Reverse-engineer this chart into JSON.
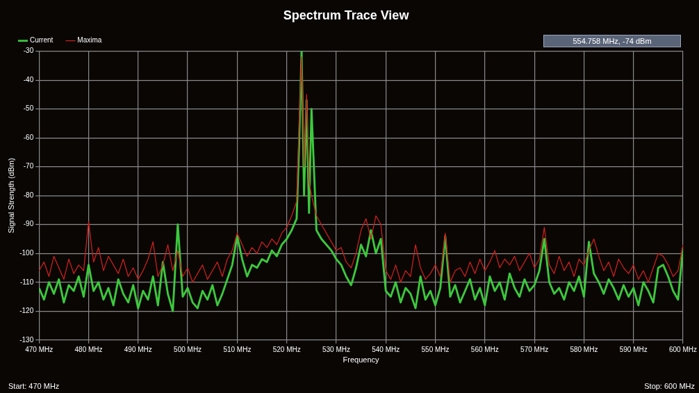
{
  "chart_data": {
    "type": "line",
    "title": "Spectrum Trace View",
    "xlabel": "Frequency",
    "ylabel": "Signal Strength (dBm)",
    "annotations": [
      "554.758 MHz,  -74 dBm",
      "Start: 470 MHz",
      "Stop: 600 MHz"
    ],
    "x": [
      470,
      471,
      472,
      473,
      474,
      475,
      476,
      477,
      478,
      479,
      480,
      481,
      482,
      483,
      484,
      485,
      486,
      487,
      488,
      489,
      490,
      491,
      492,
      493,
      494,
      495,
      496,
      497,
      498,
      499,
      500,
      501,
      502,
      503,
      504,
      505,
      506,
      507,
      508,
      509,
      510,
      511,
      512,
      513,
      514,
      515,
      516,
      517,
      518,
      519,
      520,
      521,
      522,
      522.5,
      523,
      523.5,
      524,
      524.5,
      525,
      526,
      527,
      528,
      529,
      530,
      531,
      532,
      533,
      534,
      535,
      536,
      537,
      538,
      539,
      540,
      541,
      542,
      543,
      544,
      545,
      546,
      547,
      548,
      549,
      550,
      551,
      552,
      553,
      554,
      555,
      556,
      557,
      558,
      559,
      560,
      561,
      562,
      563,
      564,
      565,
      566,
      567,
      568,
      569,
      570,
      571,
      572,
      573,
      574,
      575,
      576,
      577,
      578,
      579,
      580,
      581,
      582,
      583,
      584,
      585,
      586,
      587,
      588,
      589,
      590,
      591,
      592,
      593,
      594,
      595,
      596,
      597,
      598,
      599,
      600
    ],
    "series": [
      {
        "name": "Current",
        "color": "#3cc83c",
        "values": [
          -112,
          -116,
          -110,
          -114,
          -109,
          -117,
          -111,
          -113,
          -108,
          -115,
          -104,
          -113,
          -110,
          -116,
          -112,
          -118,
          -109,
          -114,
          -117,
          -111,
          -119,
          -113,
          -116,
          -108,
          -118,
          -103,
          -114,
          -120,
          -90,
          -115,
          -112,
          -117,
          -119,
          -113,
          -116,
          -111,
          -118,
          -114,
          -109,
          -104,
          -94,
          -102,
          -108,
          -104,
          -105,
          -102,
          -103,
          -99,
          -101,
          -97,
          -95,
          -92,
          -88,
          -62,
          -30,
          -80,
          -47,
          -86,
          -50,
          -92,
          -95,
          -97,
          -99,
          -102,
          -104,
          -108,
          -111,
          -105,
          -97,
          -101,
          -92,
          -100,
          -95,
          -113,
          -115,
          -110,
          -117,
          -112,
          -114,
          -119,
          -108,
          -116,
          -113,
          -118,
          -112,
          -94,
          -115,
          -111,
          -117,
          -113,
          -109,
          -116,
          -112,
          -118,
          -108,
          -113,
          -110,
          -116,
          -107,
          -112,
          -115,
          -109,
          -113,
          -111,
          -106,
          -95,
          -110,
          -114,
          -112,
          -116,
          -110,
          -113,
          -108,
          -115,
          -96,
          -107,
          -110,
          -114,
          -109,
          -112,
          -116,
          -111,
          -115,
          -112,
          -118,
          -110,
          -113,
          -117,
          -105,
          -104,
          -108,
          -113,
          -116,
          -98
        ]
      },
      {
        "name": "Maxima",
        "color": "#c8201c",
        "values": [
          -106,
          -103,
          -108,
          -101,
          -105,
          -109,
          -102,
          -107,
          -104,
          -106,
          -89,
          -103,
          -98,
          -106,
          -101,
          -104,
          -107,
          -102,
          -108,
          -105,
          -109,
          -106,
          -102,
          -96,
          -108,
          -104,
          -97,
          -106,
          -99,
          -108,
          -105,
          -110,
          -107,
          -104,
          -109,
          -106,
          -103,
          -108,
          -102,
          -99,
          -93,
          -97,
          -101,
          -98,
          -100,
          -96,
          -98,
          -95,
          -97,
          -93,
          -91,
          -87,
          -82,
          -55,
          -32,
          -70,
          -45,
          -75,
          -80,
          -87,
          -90,
          -93,
          -96,
          -99,
          -98,
          -103,
          -105,
          -100,
          -92,
          -88,
          -95,
          -87,
          -90,
          -106,
          -109,
          -104,
          -110,
          -106,
          -108,
          -97,
          -105,
          -109,
          -107,
          -104,
          -108,
          -93,
          -110,
          -106,
          -105,
          -108,
          -103,
          -107,
          -102,
          -106,
          -103,
          -99,
          -105,
          -102,
          -104,
          -101,
          -106,
          -103,
          -100,
          -105,
          -102,
          -91,
          -104,
          -107,
          -101,
          -106,
          -103,
          -108,
          -102,
          -104,
          -99,
          -95,
          -101,
          -106,
          -103,
          -108,
          -102,
          -105,
          -107,
          -104,
          -109,
          -106,
          -110,
          -105,
          -100,
          -101,
          -104,
          -108,
          -106,
          -97
        ]
      }
    ],
    "xlim": [
      470,
      600
    ],
    "xticks": [
      {
        "value": 470,
        "label": "470 MHz"
      },
      {
        "value": 480,
        "label": "480 MHz"
      },
      {
        "value": 490,
        "label": "490 MHz"
      },
      {
        "value": 500,
        "label": "500 MHz"
      },
      {
        "value": 510,
        "label": "510 MHz"
      },
      {
        "value": 520,
        "label": "520 MHz"
      },
      {
        "value": 530,
        "label": "530 MHz"
      },
      {
        "value": 540,
        "label": "540 MHz"
      },
      {
        "value": 550,
        "label": "550 MHz"
      },
      {
        "value": 560,
        "label": "560 MHz"
      },
      {
        "value": 570,
        "label": "570 MHz"
      },
      {
        "value": 580,
        "label": "580 MHz"
      },
      {
        "value": 590,
        "label": "590 MHz"
      },
      {
        "value": 600,
        "label": "600 MHz"
      }
    ],
    "ylim": [
      -130,
      -30
    ],
    "yticks": [
      -130,
      -120,
      -110,
      -100,
      -90,
      -80,
      -70,
      -60,
      -50,
      -40,
      -30
    ],
    "grid": true,
    "legend": "top left",
    "marker": "none",
    "line_style": "solid"
  }
}
